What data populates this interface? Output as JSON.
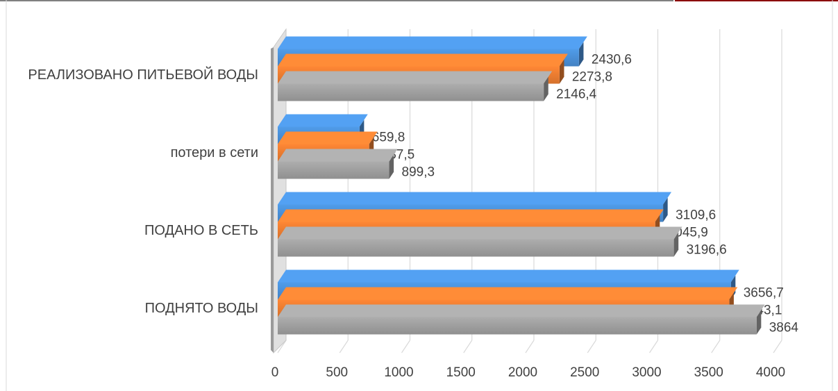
{
  "chart_data": {
    "type": "bar",
    "orientation": "horizontal",
    "three_d": true,
    "categories": [
      "ПОДНЯТО ВОДЫ",
      "ПОДАНО В СЕТЬ",
      "потери в сети ",
      "РЕАЛИЗОВАНО ПИТЬЕВОЙ ВОДЫ"
    ],
    "series": [
      {
        "color": "#a0a0a0",
        "values": [
          3864,
          3196.6,
          899.3,
          2146.4
        ],
        "labels": [
          "3864",
          "3196,6",
          "899,3",
          "2146,4"
        ]
      },
      {
        "color": "#ed7d31",
        "values": [
          3643.1,
          3045.9,
          737.5,
          2273.8
        ],
        "labels": [
          "3643,1",
          "3045,9",
          "737,5",
          "2273,8"
        ]
      },
      {
        "color": "#4a90d9",
        "values": [
          3656.7,
          3109.6,
          659.8,
          2430.6
        ],
        "labels": [
          "3656,7",
          "3109,6",
          "659,8",
          "2430,6"
        ]
      }
    ],
    "x_ticks": [
      "0",
      "500",
      "1000",
      "1500",
      "2000",
      "2500",
      "3000",
      "3500",
      "4000"
    ],
    "xlim": [
      0,
      4000
    ],
    "grid": true,
    "legend": "none"
  }
}
